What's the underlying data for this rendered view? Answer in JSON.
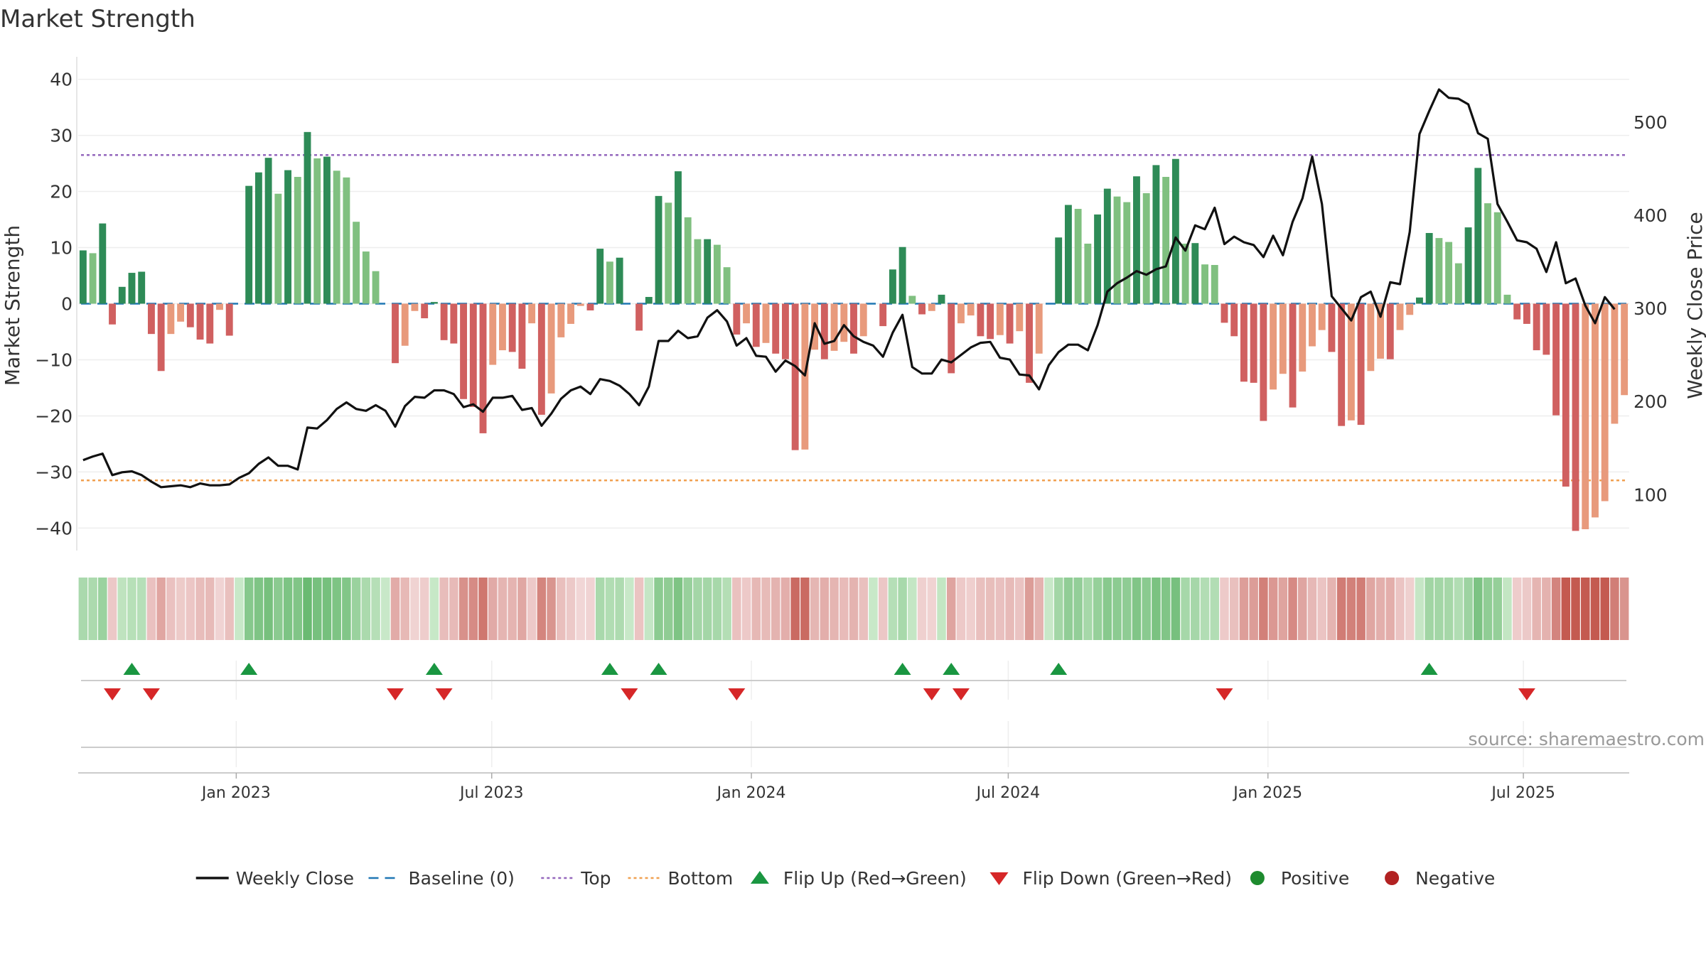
{
  "chart_data": {
    "type": "bar+line",
    "title": "Market Strength",
    "ylabel": "Market Strength",
    "y2label": "Weekly Close Price",
    "ylim": [
      -44,
      44
    ],
    "y2lim": [
      40,
      570
    ],
    "yticks": [
      40,
      30,
      20,
      10,
      0,
      -10,
      -20,
      -30,
      -40
    ],
    "y2ticks": [
      500,
      400,
      300,
      200,
      100
    ],
    "top_level": 26.5,
    "bottom_level": -31.5,
    "start_date": "2022-09-11",
    "end_date": "2025-09-14",
    "x_ticks": [
      {
        "label": "Jan 2023",
        "date": "2023-01-01"
      },
      {
        "label": "Jul 2023",
        "date": "2023-07-01"
      },
      {
        "label": "Jan 2024",
        "date": "2024-01-01"
      },
      {
        "label": "Jul 2024",
        "date": "2024-07-01"
      },
      {
        "label": "Jan 2025",
        "date": "2025-01-01"
      },
      {
        "label": "Jul 2025",
        "date": "2025-07-01"
      }
    ],
    "strength": [
      9.5,
      9,
      14.3,
      -3.7,
      3,
      5.5,
      5.7,
      -5.4,
      -12,
      -5.4,
      -3.2,
      -4.2,
      -6.4,
      -7.1,
      -1.1,
      -5.7,
      0,
      21,
      23.4,
      26,
      19.6,
      23.8,
      22.6,
      30.6,
      25.9,
      26.2,
      23.7,
      22.5,
      14.6,
      9.3,
      5.8,
      0,
      -10.6,
      -7.5,
      -1.3,
      -2.6,
      0.3,
      -6.5,
      -7.1,
      -17,
      -18.4,
      -23.1,
      -10.9,
      -8.3,
      -8.6,
      -11.6,
      -3.5,
      -19.8,
      -16,
      -6,
      -3.6,
      -0.4,
      -1.2,
      9.8,
      7.5,
      8.2,
      0,
      -4.8,
      1.2,
      19.2,
      18,
      23.6,
      15.4,
      11.5,
      11.5,
      10.5,
      6.5,
      -5.5,
      -3.5,
      -7.7,
      -7,
      -8.9,
      -9.9,
      -26.1,
      -26,
      -8.2,
      -9.9,
      -8.4,
      -6.8,
      -8.9,
      -5.8,
      0,
      -4,
      6.1,
      10.1,
      1.4,
      -1.9,
      -1.3,
      1.6,
      -12.4,
      -3.5,
      -2.1,
      -5.8,
      -6.3,
      -5.6,
      -7.1,
      -4.9,
      -14.1,
      -8.9,
      0,
      11.8,
      17.6,
      16.9,
      10.7,
      15.9,
      20.5,
      19.1,
      18.1,
      22.7,
      19.7,
      24.7,
      22.6,
      25.8,
      10.7,
      10.8,
      7,
      6.9,
      -3.4,
      -5.8,
      -13.9,
      -14.1,
      -20.9,
      -15.3,
      -12.5,
      -18.5,
      -12.1,
      -7.6,
      -4.7,
      -8.6,
      -21.8,
      -20.8,
      -21.6,
      -12,
      -9.8,
      -9.9,
      -4.7,
      -2,
      1.1,
      12.6,
      11.7,
      11,
      7.2,
      13.6,
      24.2,
      17.9,
      16.3,
      1.6,
      -2.8,
      -3.6,
      -8.3,
      -9.1,
      -19.9,
      -32.6,
      -40.5,
      -40.2,
      -38.1,
      -35.2,
      -21.4,
      -16.3
    ],
    "close": [
      137,
      141,
      144,
      121,
      124,
      125,
      121,
      114,
      108,
      109,
      110,
      108,
      112,
      110,
      110,
      111,
      118,
      123,
      133,
      140,
      131,
      131,
      127,
      172,
      171,
      180,
      192,
      199,
      192,
      190,
      196,
      190,
      173,
      195,
      205,
      204,
      212,
      212,
      208,
      194,
      197,
      189,
      204,
      204,
      206,
      191,
      193,
      174,
      187,
      203,
      212,
      216,
      208,
      224,
      222,
      217,
      208,
      196,
      216,
      265,
      265,
      276,
      268,
      270,
      290,
      298,
      286,
      260,
      268,
      249,
      248,
      232,
      244,
      238,
      228,
      284,
      262,
      265,
      282,
      270,
      264,
      260,
      248,
      274,
      293,
      237,
      230,
      230,
      245,
      242,
      250,
      258,
      263,
      264,
      247,
      245,
      229,
      228,
      213,
      239,
      253,
      261,
      261,
      255,
      282,
      318,
      327,
      333,
      340,
      336,
      342,
      345,
      376,
      362,
      389,
      385,
      408,
      369,
      377,
      371,
      368,
      355,
      378,
      357,
      393,
      418,
      463,
      412,
      313,
      300,
      287,
      312,
      318,
      291,
      328,
      326,
      382,
      487,
      512,
      535,
      526,
      525,
      519,
      488,
      482,
      412,
      393,
      373,
      371,
      364,
      339,
      371,
      327,
      332,
      303,
      284,
      312,
      299
    ],
    "flip_up_markers": [
      5,
      17,
      36,
      54,
      59,
      84,
      89,
      100,
      138
    ],
    "flip_down_markers": [
      3,
      7,
      32,
      37,
      56,
      67,
      87,
      90,
      117,
      148
    ],
    "annotation": "source: sharemaestro.com",
    "legend": {
      "position": "bottom-center",
      "entries": [
        {
          "label": "Weekly Close",
          "type": "line",
          "color": "#111111"
        },
        {
          "label": "Baseline (0)",
          "type": "dash",
          "color": "#1f77b4"
        },
        {
          "label": "Top",
          "type": "dot",
          "color": "#9467bd"
        },
        {
          "label": "Bottom",
          "type": "dot",
          "color": "#f0a050"
        },
        {
          "label": "Flip Up (Red→Green)",
          "type": "up",
          "color": "#1a9641"
        },
        {
          "label": "Flip Down (Green→Red)",
          "type": "down",
          "color": "#d62728"
        },
        {
          "label": "Positive",
          "type": "circle",
          "color": "#1e8b2e"
        },
        {
          "label": "Negative",
          "type": "circle",
          "color": "#b22222"
        }
      ]
    }
  }
}
